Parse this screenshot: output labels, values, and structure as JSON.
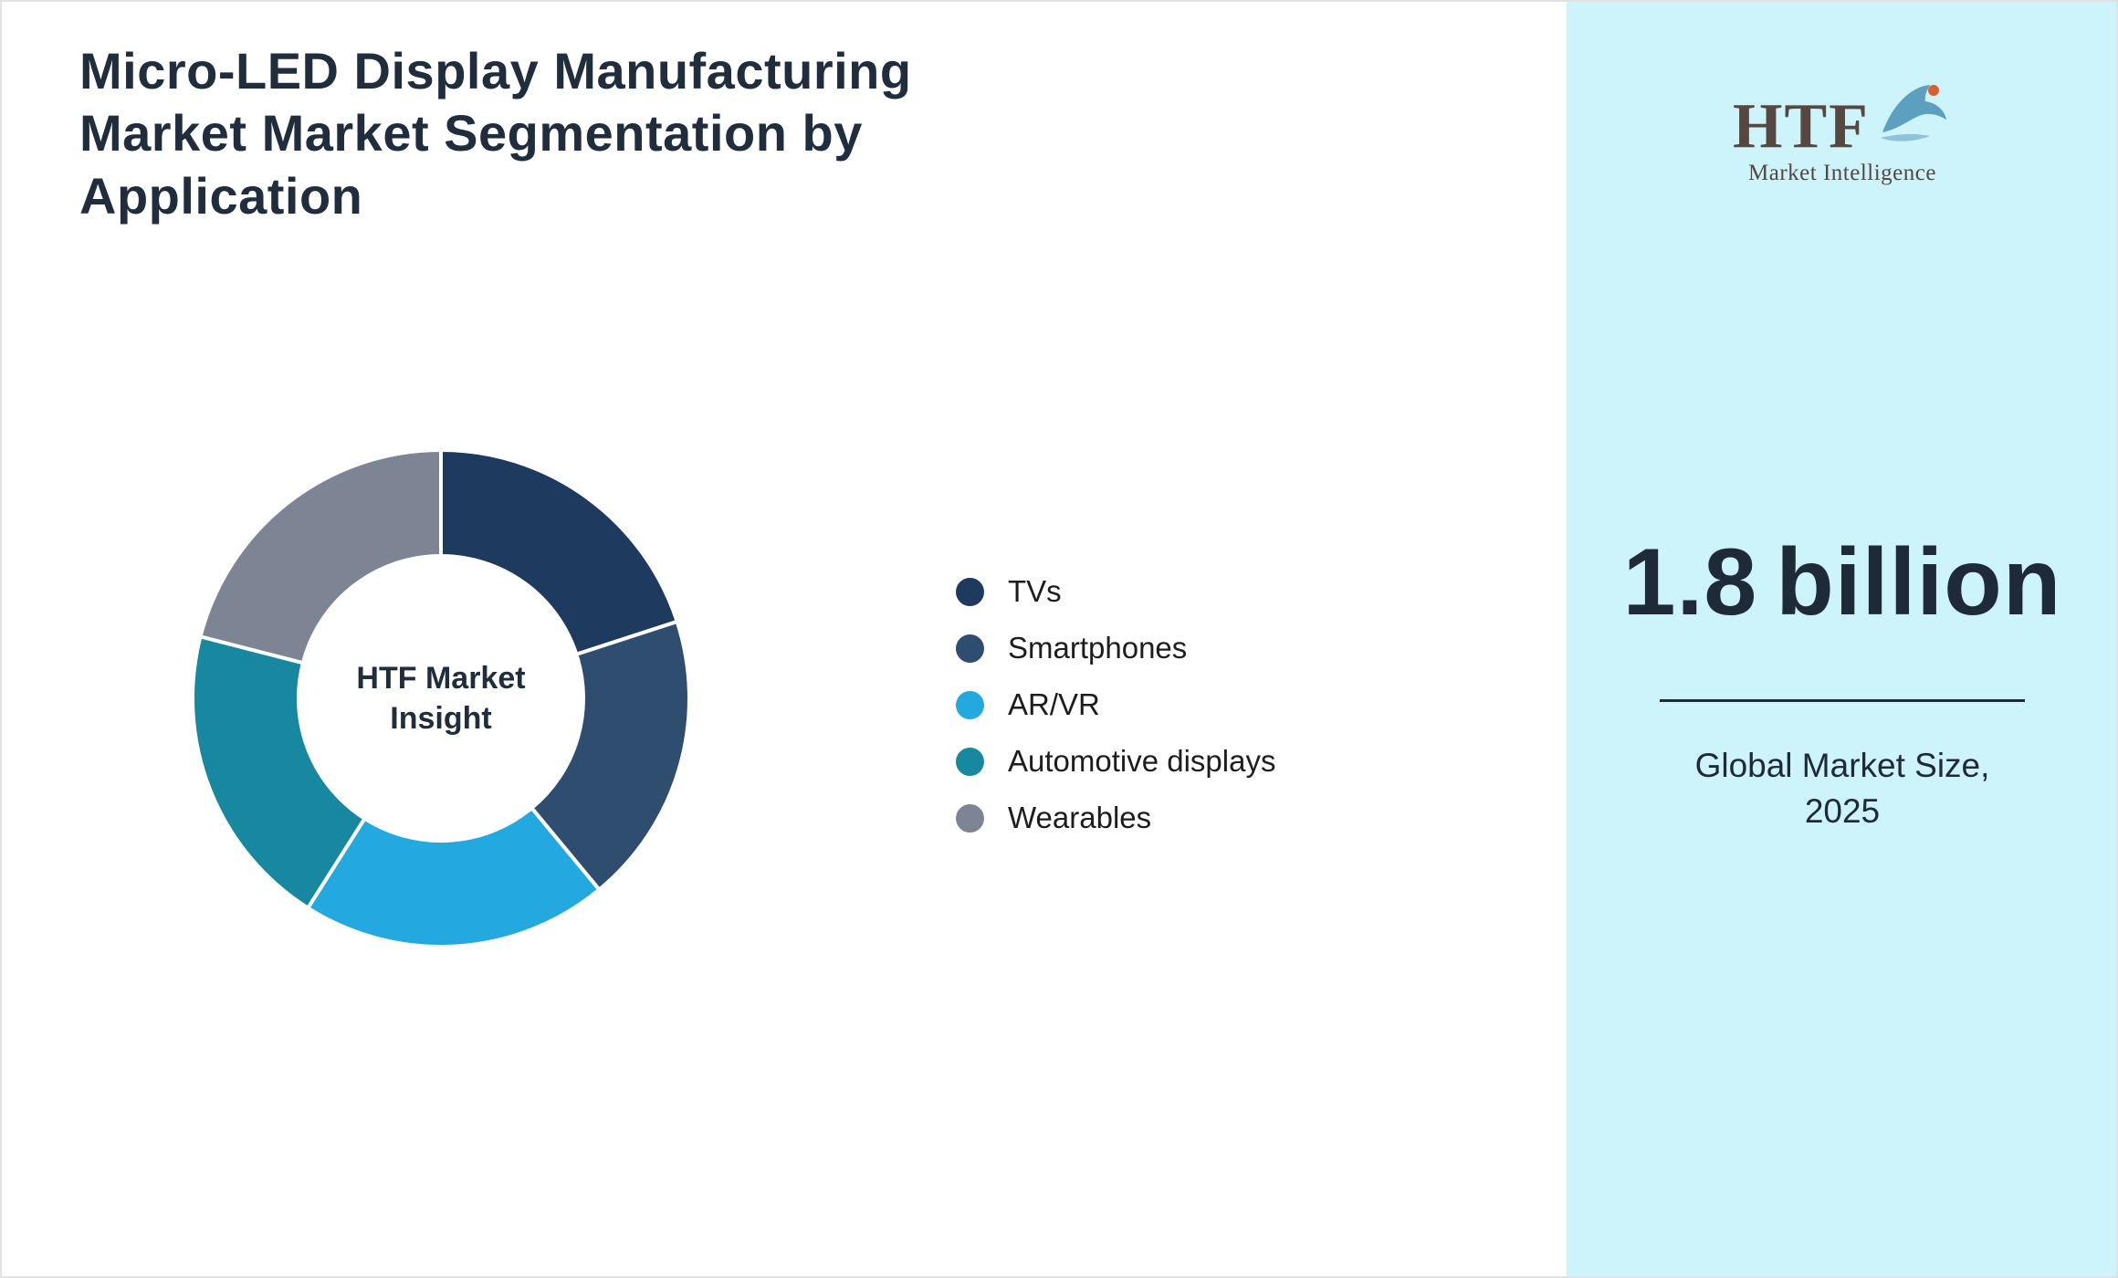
{
  "header": {
    "title": "Micro-LED Display Manufacturing Market Market Segmentation by Application"
  },
  "chart_data": {
    "type": "pie",
    "donut": true,
    "title": "Micro-LED Display Manufacturing Market Market Segmentation by Application",
    "center_label": "HTF Market Insight",
    "legend_position": "right",
    "labels": [
      "TVs",
      "Smartphones",
      "AR/VR",
      "Automotive displays",
      "Wearables"
    ],
    "values": [
      20,
      19,
      20,
      20,
      21
    ],
    "colors": [
      "#1e3a5f",
      "#2f4d6e",
      "#23a8e0",
      "#17889f",
      "#7d8594"
    ]
  },
  "sidebar": {
    "background": "#cdf3fb",
    "logo": {
      "name": "HTF",
      "tagline": "Market Intelligence",
      "dolphin_icon_color": "#5c9fbe",
      "dolphin_accent_color": "#d95f2b"
    },
    "stat": {
      "value": "1.8",
      "unit": "billion",
      "caption_line1": "Global Market Size,",
      "caption_line2": "2025"
    }
  }
}
